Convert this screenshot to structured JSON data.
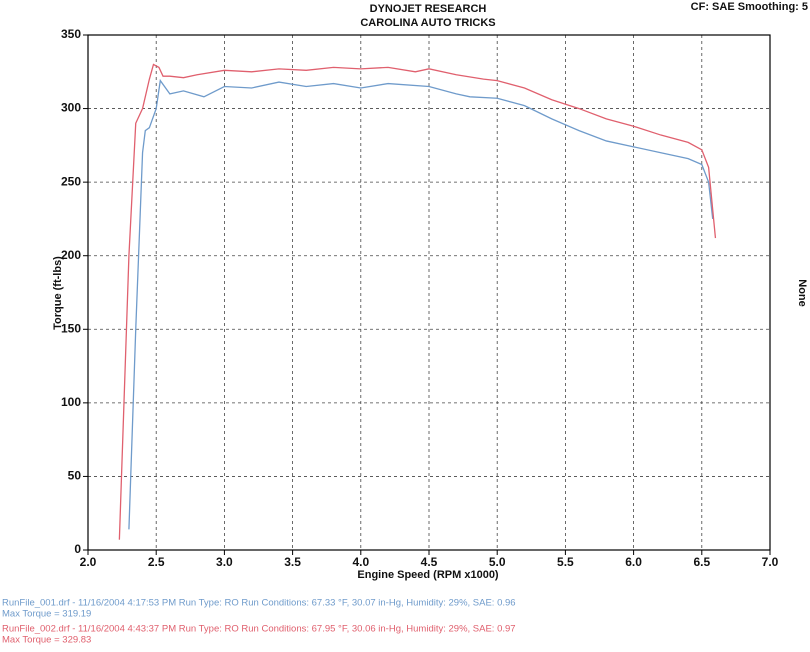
{
  "chart_data": {
    "type": "line",
    "title": "DYNOJET RESEARCH",
    "subtitle": "CAROLINA AUTO TRICKS",
    "corner_note": "CF: SAE  Smoothing: 5",
    "side_note": "None",
    "x_label": "Engine Speed (RPM x1000)",
    "y_label": "Torque (ft-lbs)",
    "xlim": [
      2.0,
      7.0
    ],
    "ylim": [
      0,
      350
    ],
    "xticks": [
      {
        "value": 2.0,
        "label": "2.0"
      },
      {
        "value": 2.5,
        "label": "2.5"
      },
      {
        "value": 3.0,
        "label": "3.0"
      },
      {
        "value": 3.5,
        "label": "3.5"
      },
      {
        "value": 4.0,
        "label": "4.0"
      },
      {
        "value": 4.5,
        "label": "4.5"
      },
      {
        "value": 5.0,
        "label": "5.0"
      },
      {
        "value": 5.5,
        "label": "5.5"
      },
      {
        "value": 6.0,
        "label": "6.0"
      },
      {
        "value": 6.5,
        "label": "6.5"
      },
      {
        "value": 7.0,
        "label": "7.0"
      }
    ],
    "yticks": [
      0,
      50,
      100,
      150,
      200,
      250,
      300,
      350
    ],
    "grid": true,
    "series": [
      {
        "name": "RunFile_001.drf - 11/16/2004 4:17:53 PM  Run Type: RO  Run Conditions: 67.33 °F, 30.07 in-Hg,  Humidity:  29%, SAE: 0.96",
        "max_label": "Max Torque = 319.19",
        "color": "#6f9bcb",
        "x": [
          2.3,
          2.35,
          2.4,
          2.42,
          2.45,
          2.5,
          2.53,
          2.6,
          2.7,
          2.85,
          3.0,
          3.2,
          3.4,
          3.6,
          3.8,
          4.0,
          4.2,
          4.5,
          4.7,
          4.8,
          5.0,
          5.2,
          5.4,
          5.6,
          5.8,
          6.0,
          6.2,
          6.4,
          6.5,
          6.55,
          6.58
        ],
        "values": [
          14,
          150,
          270,
          285,
          287,
          300,
          319,
          310,
          312,
          308,
          315,
          314,
          318,
          315,
          317,
          314,
          317,
          315,
          310,
          308,
          307,
          302,
          293,
          285,
          278,
          274,
          270,
          266,
          262,
          250,
          225
        ]
      },
      {
        "name": "RunFile_002.drf - 11/16/2004 4:43:37 PM  Run Type: RO  Run Conditions: 67.95 °F, 30.06 in-Hg,  Humidity:  29%, SAE: 0.97",
        "max_label": "Max Torque = 329.83",
        "color": "#e0606e",
        "x": [
          2.23,
          2.3,
          2.35,
          2.4,
          2.45,
          2.48,
          2.52,
          2.55,
          2.6,
          2.7,
          2.8,
          3.0,
          3.2,
          3.4,
          3.6,
          3.8,
          4.0,
          4.2,
          4.4,
          4.5,
          4.7,
          4.9,
          5.0,
          5.2,
          5.4,
          5.6,
          5.8,
          6.0,
          6.2,
          6.4,
          6.5,
          6.55,
          6.6
        ],
        "values": [
          7,
          200,
          290,
          300,
          320,
          330,
          328,
          322,
          322,
          321,
          323,
          326,
          325,
          327,
          326,
          328,
          327,
          328,
          325,
          327,
          323,
          320,
          319,
          314,
          306,
          300,
          293,
          288,
          282,
          277,
          272,
          260,
          212
        ]
      }
    ]
  }
}
